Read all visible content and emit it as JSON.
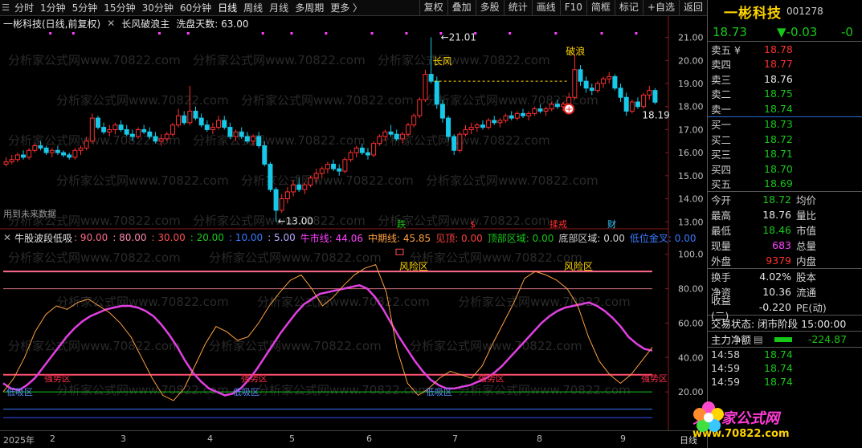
{
  "toolbar": {
    "periods": [
      "分时",
      "1分钟",
      "5分钟",
      "15分钟",
      "30分钟",
      "60分钟",
      "日线",
      "周线",
      "月线",
      "多周期",
      "更多 〉"
    ],
    "active_period": "日线",
    "buttons": [
      "复权",
      "叠加",
      "多股",
      "统计",
      "画线",
      "F10",
      "简框",
      "标记",
      "+自选",
      "返回"
    ]
  },
  "main_header": {
    "stock": "一彬科技(日线,前复权)",
    "indicator": "长风破浪主",
    "wash_label": "洗盘天数: 63.00"
  },
  "main_annotations": {
    "high_price": "21.01",
    "low_price": "13.00",
    "last_price": "18.19",
    "changfeng": "长风",
    "polang": "破浪",
    "future_data": "用到未来数据",
    "events": [
      "跌",
      "$",
      "揉戒",
      "财"
    ]
  },
  "main_axis": [
    "21.00",
    "20.00",
    "19.00",
    "18.00",
    "17.00",
    "16.00",
    "15.00",
    "14.00",
    "13.00"
  ],
  "sub_header": {
    "title": "牛股波段低吸",
    "levels": [
      ": 90.00",
      ": 80.00",
      ": 30.00",
      ": 20.00",
      ": 10.00",
      ": 5.00"
    ],
    "bull_line": "牛市线: 44.06",
    "mid_line": "中期线: 45.85",
    "top_seen": "见顶: 0.00",
    "top_zone": "顶部区域: 0.00",
    "bottom_zone": "底部区域: 0.00",
    "golden_cross": "低位金叉: 0.00"
  },
  "sub_annotations": {
    "risk": "风险区",
    "trap": "强势区",
    "low_zone": "低吸区"
  },
  "sub_axis": [
    "100.0",
    "80.00",
    "60.00",
    "40.00",
    "20.00"
  ],
  "date_axis": [
    "2025年",
    "2",
    "3",
    "4",
    "5",
    "6",
    "7",
    "8",
    "9",
    "日线"
  ],
  "watermark": "分析家公式网www.70822.com",
  "quote": {
    "name": "一彬科技",
    "code": "001278",
    "price": "18.73",
    "change": "▼-0.03",
    "pct": "-0",
    "asks": [
      {
        "label": "卖五 ¥",
        "price": "18.78",
        "color": "red",
        "vol": ""
      },
      {
        "label": "卖四",
        "price": "18.77",
        "color": "red",
        "vol": ""
      },
      {
        "label": "卖三",
        "price": "18.76",
        "color": "white",
        "vol": ""
      },
      {
        "label": "卖二",
        "price": "18.75",
        "color": "green",
        "vol": ""
      },
      {
        "label": "卖一",
        "price": "18.74",
        "color": "green",
        "vol": ""
      }
    ],
    "bids": [
      {
        "label": "买一",
        "price": "18.73",
        "color": "green",
        "vol": ""
      },
      {
        "label": "买二",
        "price": "18.72",
        "color": "green",
        "vol": ""
      },
      {
        "label": "买三",
        "price": "18.71",
        "color": "green",
        "vol": ""
      },
      {
        "label": "买四",
        "price": "18.70",
        "color": "green",
        "vol": ""
      },
      {
        "label": "买五",
        "price": "18.69",
        "color": "green",
        "vol": ""
      }
    ],
    "stats": [
      {
        "l1": "今开",
        "v1": "18.72",
        "c1": "green",
        "l2": "均价"
      },
      {
        "l1": "最高",
        "v1": "18.76",
        "c1": "white",
        "l2": "量比"
      },
      {
        "l1": "最低",
        "v1": "18.46",
        "c1": "green",
        "l2": "市值"
      },
      {
        "l1": "现量",
        "v1": "683",
        "c1": "magenta",
        "l2": "总量"
      },
      {
        "l1": "外盘",
        "v1": "9379",
        "c1": "red",
        "l2": "内盘"
      }
    ],
    "stats2": [
      {
        "l1": "换手",
        "v1": "4.02%",
        "c1": "white",
        "l2": "股本"
      },
      {
        "l1": "净资",
        "v1": "10.36",
        "c1": "white",
        "l2": "流通"
      },
      {
        "l1": "收益(二)",
        "v1": "-0.220",
        "c1": "white",
        "l2": "PE(动)"
      }
    ],
    "trade_status": "交易状态: 闭市阶段 15:00:00",
    "main_flow_label": "主力净额",
    "main_flow_value": "-224.87",
    "trades": [
      {
        "t": "14:58",
        "p": "18.74"
      },
      {
        "t": "14:59",
        "p": "18.74"
      },
      {
        "t": "14:59",
        "p": "18.74"
      }
    ]
  },
  "logo": {
    "line1": "分析家公式网",
    "line2": "www.70822.com"
  },
  "colors": {
    "up": "#ff3030",
    "down": "#18c8e8",
    "magenta_line": "#e040e0",
    "orange_line": "#ffa040",
    "risk_line": "#ff6a8a",
    "green_line": "#18c818",
    "blue_line": "#3050ff"
  },
  "chart_data": {
    "type": "candlestick",
    "title": "一彬科技(日线,前复权)",
    "price_axis": {
      "min": 12.8,
      "max": 21.3
    },
    "annotated": {
      "high": 21.01,
      "low": 13.0,
      "last": 18.19
    },
    "candles": [
      [
        15.5,
        15.8,
        15.4,
        15.6
      ],
      [
        15.6,
        15.9,
        15.5,
        15.7
      ],
      [
        15.7,
        16.0,
        15.6,
        15.9
      ],
      [
        15.9,
        16.1,
        15.7,
        15.8
      ],
      [
        15.8,
        16.2,
        15.7,
        16.1
      ],
      [
        16.1,
        16.4,
        16.0,
        16.3
      ],
      [
        16.3,
        16.5,
        16.1,
        16.2
      ],
      [
        16.2,
        16.3,
        15.9,
        16.0
      ],
      [
        16.0,
        16.2,
        15.8,
        16.1
      ],
      [
        16.1,
        16.3,
        15.9,
        16.0
      ],
      [
        16.0,
        16.1,
        15.8,
        15.9
      ],
      [
        15.9,
        16.0,
        15.7,
        15.8
      ],
      [
        15.8,
        16.2,
        15.7,
        16.1
      ],
      [
        16.1,
        16.3,
        15.9,
        16.2
      ],
      [
        16.2,
        16.7,
        16.1,
        16.5
      ],
      [
        16.5,
        17.7,
        16.4,
        17.5
      ],
      [
        17.5,
        17.6,
        17.0,
        17.1
      ],
      [
        17.1,
        17.3,
        16.8,
        16.9
      ],
      [
        16.9,
        17.2,
        16.7,
        17.0
      ],
      [
        17.0,
        17.3,
        16.8,
        17.2
      ],
      [
        17.2,
        17.4,
        16.9,
        17.0
      ],
      [
        17.0,
        17.2,
        16.7,
        16.8
      ],
      [
        16.8,
        17.0,
        16.5,
        16.7
      ],
      [
        16.7,
        17.1,
        16.6,
        17.0
      ],
      [
        17.0,
        17.2,
        16.8,
        16.9
      ],
      [
        16.9,
        17.1,
        16.6,
        16.7
      ],
      [
        16.7,
        16.9,
        16.4,
        16.5
      ],
      [
        16.5,
        16.8,
        16.3,
        16.6
      ],
      [
        16.6,
        16.9,
        16.5,
        16.8
      ],
      [
        16.8,
        17.3,
        16.7,
        17.2
      ],
      [
        17.2,
        17.9,
        17.1,
        17.6
      ],
      [
        17.6,
        17.8,
        17.2,
        17.3
      ],
      [
        17.3,
        18.9,
        17.2,
        17.8
      ],
      [
        17.8,
        18.0,
        17.4,
        17.5
      ],
      [
        17.5,
        17.7,
        17.1,
        17.2
      ],
      [
        17.2,
        17.4,
        16.9,
        17.0
      ],
      [
        17.0,
        17.3,
        16.8,
        17.1
      ],
      [
        17.1,
        17.6,
        17.0,
        17.4
      ],
      [
        17.4,
        17.6,
        17.0,
        17.1
      ],
      [
        17.1,
        17.3,
        16.6,
        16.7
      ],
      [
        16.7,
        17.0,
        16.5,
        16.9
      ],
      [
        16.9,
        17.1,
        16.6,
        16.7
      ],
      [
        16.7,
        16.9,
        16.4,
        16.5
      ],
      [
        16.5,
        16.8,
        16.3,
        16.7
      ],
      [
        16.7,
        16.9,
        16.2,
        16.3
      ],
      [
        16.3,
        16.5,
        15.4,
        15.5
      ],
      [
        15.5,
        15.6,
        14.3,
        14.4
      ],
      [
        14.4,
        14.5,
        13.0,
        13.5
      ],
      [
        13.5,
        14.2,
        13.4,
        14.0
      ],
      [
        14.0,
        14.5,
        13.8,
        14.3
      ],
      [
        14.3,
        14.8,
        14.1,
        14.6
      ],
      [
        14.6,
        14.9,
        14.3,
        14.4
      ],
      [
        14.4,
        14.7,
        14.2,
        14.6
      ],
      [
        14.6,
        15.0,
        14.5,
        14.9
      ],
      [
        14.9,
        15.3,
        14.7,
        15.1
      ],
      [
        15.1,
        15.4,
        14.9,
        15.3
      ],
      [
        15.3,
        15.6,
        15.1,
        15.5
      ],
      [
        15.5,
        15.7,
        15.2,
        15.3
      ],
      [
        15.3,
        15.5,
        15.0,
        15.2
      ],
      [
        15.2,
        15.8,
        15.1,
        15.7
      ],
      [
        15.7,
        16.1,
        15.6,
        16.0
      ],
      [
        16.0,
        16.3,
        15.8,
        16.2
      ],
      [
        16.2,
        16.4,
        15.9,
        16.0
      ],
      [
        16.0,
        16.2,
        15.7,
        15.9
      ],
      [
        15.9,
        16.5,
        15.8,
        16.4
      ],
      [
        16.4,
        16.8,
        16.3,
        16.7
      ],
      [
        16.7,
        17.0,
        16.5,
        16.9
      ],
      [
        16.9,
        17.2,
        16.7,
        16.8
      ],
      [
        16.8,
        17.0,
        16.5,
        16.6
      ],
      [
        16.6,
        16.9,
        16.4,
        16.8
      ],
      [
        16.8,
        17.3,
        16.7,
        17.2
      ],
      [
        17.2,
        17.7,
        17.1,
        17.6
      ],
      [
        17.6,
        18.4,
        17.5,
        18.3
      ],
      [
        18.3,
        19.6,
        18.2,
        19.4
      ],
      [
        19.4,
        21.01,
        19.0,
        19.1
      ],
      [
        19.1,
        19.3,
        17.9,
        18.1
      ],
      [
        18.1,
        18.3,
        17.3,
        17.5
      ],
      [
        17.5,
        17.6,
        16.5,
        16.7
      ],
      [
        16.7,
        16.8,
        15.9,
        16.1
      ],
      [
        16.1,
        16.9,
        16.0,
        16.8
      ],
      [
        16.8,
        17.2,
        16.7,
        17.0
      ],
      [
        17.0,
        17.3,
        16.8,
        17.1
      ],
      [
        17.1,
        17.3,
        16.9,
        17.2
      ],
      [
        17.2,
        17.4,
        17.0,
        17.1
      ],
      [
        17.1,
        17.5,
        17.0,
        17.4
      ],
      [
        17.4,
        17.6,
        17.2,
        17.3
      ],
      [
        17.3,
        17.5,
        17.1,
        17.4
      ],
      [
        17.4,
        17.7,
        17.3,
        17.6
      ],
      [
        17.6,
        17.8,
        17.4,
        17.5
      ],
      [
        17.5,
        17.8,
        17.4,
        17.7
      ],
      [
        17.7,
        17.9,
        17.5,
        17.6
      ],
      [
        17.6,
        17.8,
        17.4,
        17.7
      ],
      [
        17.7,
        18.0,
        17.6,
        17.9
      ],
      [
        17.9,
        18.1,
        17.7,
        17.8
      ],
      [
        17.8,
        18.0,
        17.6,
        17.9
      ],
      [
        17.9,
        18.2,
        17.8,
        18.1
      ],
      [
        18.1,
        18.3,
        17.9,
        18.0
      ],
      [
        18.0,
        18.2,
        17.8,
        18.1
      ],
      [
        18.1,
        18.6,
        18.0,
        18.4
      ],
      [
        18.4,
        20.3,
        18.3,
        19.6
      ],
      [
        19.6,
        19.8,
        18.9,
        19.1
      ],
      [
        19.1,
        19.3,
        18.6,
        18.8
      ],
      [
        18.8,
        19.0,
        18.5,
        18.7
      ],
      [
        18.7,
        19.1,
        18.6,
        19.0
      ],
      [
        19.0,
        19.3,
        18.8,
        19.2
      ],
      [
        19.2,
        19.5,
        19.0,
        19.3
      ],
      [
        19.3,
        19.4,
        18.7,
        18.8
      ],
      [
        18.8,
        19.0,
        18.2,
        18.4
      ],
      [
        18.4,
        18.6,
        17.6,
        17.8
      ],
      [
        17.8,
        18.3,
        17.7,
        18.2
      ],
      [
        18.2,
        18.4,
        17.9,
        18.0
      ],
      [
        18.0,
        18.6,
        17.9,
        18.5
      ],
      [
        18.5,
        18.9,
        18.3,
        18.7
      ],
      [
        18.7,
        18.8,
        18.1,
        18.19
      ]
    ],
    "sub_series": [
      {
        "name": "牛市线",
        "color": "#e040e0",
        "values": [
          25,
          22,
          21,
          24,
          28,
          34,
          40,
          46,
          52,
          57,
          61,
          64,
          66,
          68,
          69,
          70,
          70,
          69,
          67,
          64,
          59,
          53,
          46,
          38,
          31,
          26,
          22,
          20,
          18,
          19,
          22,
          27,
          33,
          40,
          47,
          54,
          60,
          66,
          71,
          74,
          77,
          78,
          79,
          80,
          81,
          82,
          80,
          75,
          68,
          60,
          52,
          45,
          38,
          32,
          27,
          24,
          22,
          22,
          23,
          24,
          26,
          28,
          31,
          35,
          40,
          45,
          50,
          55,
          60,
          64,
          67,
          69,
          70,
          71,
          72,
          70,
          67,
          63,
          58,
          52,
          48,
          45,
          44
        ]
      },
      {
        "name": "中期线",
        "color": "#ffa040",
        "values": [
          20,
          28,
          40,
          55,
          65,
          70,
          68,
          72,
          74,
          70,
          66,
          60,
          52,
          40,
          28,
          18,
          15,
          22,
          35,
          48,
          58,
          55,
          50,
          52,
          60,
          70,
          78,
          85,
          88,
          80,
          70,
          75,
          82,
          88,
          92,
          94,
          78,
          45,
          25,
          18,
          22,
          28,
          32,
          30,
          28,
          35,
          48,
          60,
          72,
          86,
          90,
          88,
          85,
          80,
          70,
          52,
          38,
          30,
          25,
          30,
          38,
          46
        ]
      }
    ]
  }
}
